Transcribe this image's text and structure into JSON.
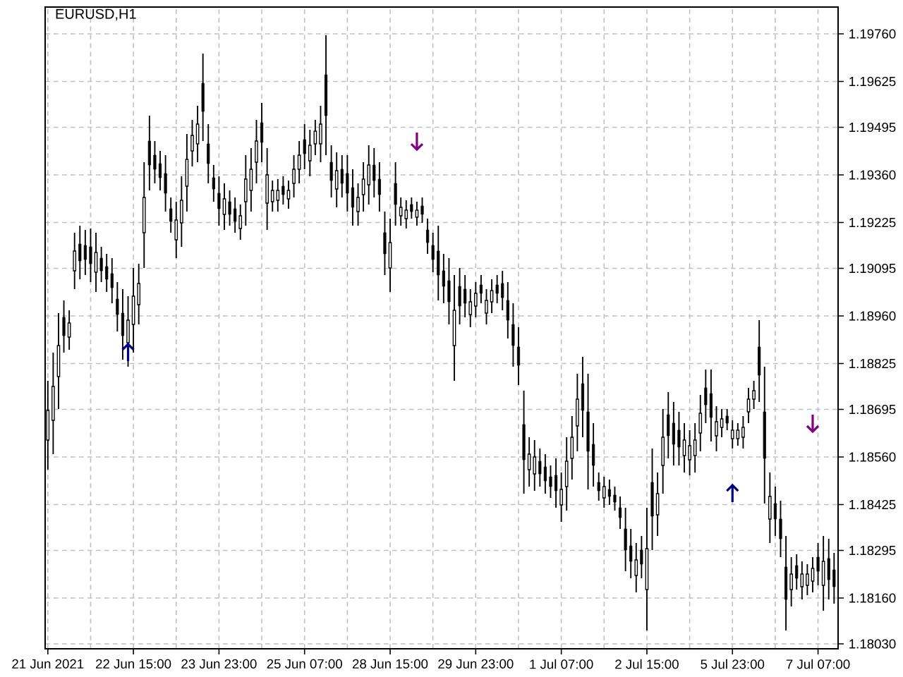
{
  "chart_data": {
    "type": "candlestick",
    "title": "EURUSD,H1",
    "color": "#000000",
    "categories": [
      "21 Jun 2021",
      null,
      null,
      null,
      null,
      null,
      null,
      null,
      null,
      null,
      null,
      null,
      null,
      null,
      null,
      null,
      "22 Jun 15:00",
      null,
      null,
      null,
      null,
      null,
      null,
      null,
      null,
      null,
      null,
      null,
      null,
      null,
      null,
      null,
      "23 Jun 23:00",
      null,
      null,
      null,
      null,
      null,
      null,
      null,
      null,
      null,
      null,
      null,
      null,
      null,
      null,
      null,
      "25 Jun 07:00",
      null,
      null,
      null,
      null,
      null,
      null,
      null,
      null,
      null,
      null,
      null,
      null,
      null,
      null,
      null,
      "28 Jun 15:00",
      null,
      null,
      null,
      null,
      null,
      null,
      null,
      null,
      null,
      null,
      null,
      null,
      null,
      null,
      null,
      "29 Jun 23:00",
      null,
      null,
      null,
      null,
      null,
      null,
      null,
      null,
      null,
      null,
      null,
      null,
      null,
      null,
      null,
      "1 Jul 07:00",
      null,
      null,
      null,
      null,
      null,
      null,
      null,
      null,
      null,
      null,
      null,
      null,
      null,
      null,
      null,
      "2 Jul 15:00",
      null,
      null,
      null,
      null,
      null,
      null,
      null,
      null,
      null,
      null,
      null,
      null,
      null,
      null,
      null,
      "5 Jul 23:00",
      null,
      null,
      null,
      null,
      null,
      null,
      null,
      null,
      null,
      null,
      null,
      null,
      null,
      null,
      null,
      "7 Jul 07:00",
      null,
      null,
      null
    ],
    "ohlc": [
      [
        1.18608,
        1.18776,
        1.18524,
        1.18692
      ],
      [
        1.18664,
        1.18856,
        1.18568,
        1.1876
      ],
      [
        1.18788,
        1.18968,
        1.18696,
        1.18876
      ],
      [
        1.18956,
        1.19004,
        1.18856,
        1.18904
      ],
      [
        1.189,
        1.18976,
        1.18864,
        1.1894
      ],
      [
        1.19088,
        1.19196,
        1.19036,
        1.19144
      ],
      [
        1.19164,
        1.19216,
        1.19064,
        1.19116
      ],
      [
        1.1916,
        1.19204,
        1.19076,
        1.1912
      ],
      [
        1.19156,
        1.19208,
        1.19056,
        1.19108
      ],
      [
        1.19084,
        1.19196,
        1.19028,
        1.1914
      ],
      [
        1.19124,
        1.19156,
        1.19056,
        1.19088
      ],
      [
        1.191,
        1.19136,
        1.19028,
        1.19064
      ],
      [
        1.1908,
        1.19124,
        1.18996,
        1.1904
      ],
      [
        1.19008,
        1.19056,
        1.18916,
        1.18964
      ],
      [
        1.18968,
        1.19036,
        1.18836,
        1.18904
      ],
      [
        1.18884,
        1.19016,
        1.18816,
        1.18948
      ],
      [
        1.18936,
        1.19096,
        1.18856,
        1.19016
      ],
      [
        1.18992,
        1.19108,
        1.18936,
        1.19052
      ],
      [
        1.19196,
        1.19396,
        1.19096,
        1.19296
      ],
      [
        1.19456,
        1.19528,
        1.19316,
        1.19388
      ],
      [
        1.19416,
        1.19456,
        1.19336,
        1.19376
      ],
      [
        1.19392,
        1.19428,
        1.19316,
        1.19352
      ],
      [
        1.19364,
        1.19416,
        1.19256,
        1.19308
      ],
      [
        1.19264,
        1.19296,
        1.19196,
        1.19228
      ],
      [
        1.19176,
        1.19284,
        1.19124,
        1.19232
      ],
      [
        1.19224,
        1.19356,
        1.19156,
        1.19288
      ],
      [
        1.19328,
        1.19476,
        1.19256,
        1.19404
      ],
      [
        1.19428,
        1.19516,
        1.19384,
        1.19472
      ],
      [
        1.19448,
        1.19556,
        1.19396,
        1.19504
      ],
      [
        1.1962,
        1.19704,
        1.19456,
        1.1954
      ],
      [
        1.19448,
        1.19504,
        1.19336,
        1.19392
      ],
      [
        1.19352,
        1.19388,
        1.19284,
        1.1932
      ],
      [
        1.19308,
        1.19356,
        1.19216,
        1.19264
      ],
      [
        1.19248,
        1.19336,
        1.19204,
        1.19292
      ],
      [
        1.19284,
        1.19316,
        1.19216,
        1.19248
      ],
      [
        1.19264,
        1.19296,
        1.19196,
        1.19228
      ],
      [
        1.19208,
        1.19276,
        1.19176,
        1.19244
      ],
      [
        1.19284,
        1.19416,
        1.19216,
        1.19348
      ],
      [
        1.19316,
        1.19436,
        1.19256,
        1.19376
      ],
      [
        1.19396,
        1.19516,
        1.19336,
        1.19456
      ],
      [
        1.19508,
        1.19564,
        1.19396,
        1.19452
      ],
      [
        1.1928,
        1.19436,
        1.19204,
        1.1936
      ],
      [
        1.19284,
        1.19344,
        1.19256,
        1.19316
      ],
      [
        1.19288,
        1.19348,
        1.19256,
        1.19316
      ],
      [
        1.19328,
        1.19356,
        1.19276,
        1.19304
      ],
      [
        1.19292,
        1.19344,
        1.19264,
        1.19316
      ],
      [
        1.19336,
        1.19416,
        1.19296,
        1.19376
      ],
      [
        1.19376,
        1.19456,
        1.19336,
        1.19416
      ],
      [
        1.1946,
        1.19504,
        1.19376,
        1.1942
      ],
      [
        1.194,
        1.19488,
        1.19356,
        1.19444
      ],
      [
        1.19448,
        1.19516,
        1.19416,
        1.19484
      ],
      [
        1.19448,
        1.19556,
        1.19396,
        1.19504
      ],
      [
        1.19644,
        1.19756,
        1.19416,
        1.19528
      ],
      [
        1.19396,
        1.19444,
        1.19296,
        1.19344
      ],
      [
        1.1932,
        1.19424,
        1.19268,
        1.19372
      ],
      [
        1.19376,
        1.19416,
        1.19296,
        1.19336
      ],
      [
        1.19364,
        1.19416,
        1.19256,
        1.19308
      ],
      [
        1.19324,
        1.19376,
        1.19216,
        1.19268
      ],
      [
        1.19256,
        1.19336,
        1.19216,
        1.19296
      ],
      [
        1.19304,
        1.19396,
        1.19256,
        1.19348
      ],
      [
        1.19332,
        1.19444,
        1.19276,
        1.19388
      ],
      [
        1.19388,
        1.19436,
        1.19296,
        1.19344
      ],
      [
        1.19348,
        1.19396,
        1.19256,
        1.19304
      ],
      [
        1.19196,
        1.19256,
        1.19076,
        1.19136
      ],
      [
        1.19096,
        1.19236,
        1.19028,
        1.19168
      ],
      [
        1.19336,
        1.19396,
        1.19216,
        1.19276
      ],
      [
        1.19244,
        1.19296,
        1.19216,
        1.19268
      ],
      [
        1.19236,
        1.19288,
        1.19208,
        1.1926
      ],
      [
        1.19276,
        1.19296,
        1.19236,
        1.19256
      ],
      [
        1.1924,
        1.19284,
        1.19216,
        1.1926
      ],
      [
        1.19272,
        1.19296,
        1.19224,
        1.19248
      ],
      [
        1.19204,
        1.19236,
        1.19136,
        1.19168
      ],
      [
        1.1916,
        1.19196,
        1.19084,
        1.1912
      ],
      [
        1.19144,
        1.19216,
        1.19004,
        1.19076
      ],
      [
        1.19088,
        1.19136,
        1.18996,
        1.19044
      ],
      [
        1.1906,
        1.19124,
        1.18936,
        1.19
      ],
      [
        1.18876,
        1.19076,
        1.18776,
        1.18976
      ],
      [
        1.19044,
        1.19096,
        1.18936,
        1.18988
      ],
      [
        1.19036,
        1.19076,
        1.18956,
        1.18996
      ],
      [
        1.18964,
        1.19036,
        1.18928,
        1.19
      ],
      [
        1.18988,
        1.19056,
        1.18956,
        1.19024
      ],
      [
        1.19048,
        1.19076,
        1.18996,
        1.19024
      ],
      [
        1.18968,
        1.19036,
        1.18936,
        1.19004
      ],
      [
        1.19,
        1.19064,
        1.18968,
        1.19032
      ],
      [
        1.19048,
        1.19076,
        1.18996,
        1.19024
      ],
      [
        1.19052,
        1.19088,
        1.18976,
        1.19012
      ],
      [
        1.19004,
        1.19056,
        1.18896,
        1.18948
      ],
      [
        1.18936,
        1.18996,
        1.18816,
        1.18876
      ],
      [
        1.18872,
        1.18928,
        1.18764,
        1.1882
      ],
      [
        1.18652,
        1.18748,
        1.18456,
        1.18552
      ],
      [
        1.18524,
        1.18616,
        1.18476,
        1.18568
      ],
      [
        1.18512,
        1.18608,
        1.18464,
        1.1856
      ],
      [
        1.18548,
        1.18584,
        1.18476,
        1.18512
      ],
      [
        1.18532,
        1.18568,
        1.18456,
        1.18492
      ],
      [
        1.18504,
        1.18536,
        1.18444,
        1.18476
      ],
      [
        1.18508,
        1.18556,
        1.18416,
        1.18464
      ],
      [
        1.18424,
        1.18516,
        1.18376,
        1.18468
      ],
      [
        1.18476,
        1.18616,
        1.18408,
        1.18548
      ],
      [
        1.18556,
        1.18676,
        1.18496,
        1.18616
      ],
      [
        1.18648,
        1.18796,
        1.18576,
        1.18724
      ],
      [
        1.18768,
        1.18844,
        1.18616,
        1.18692
      ],
      [
        1.18688,
        1.18796,
        1.18468,
        1.18576
      ],
      [
        1.18596,
        1.18656,
        1.18476,
        1.18536
      ],
      [
        1.18488,
        1.18516,
        1.18436,
        1.18464
      ],
      [
        1.18444,
        1.18504,
        1.18416,
        1.18476
      ],
      [
        1.18468,
        1.18496,
        1.18424,
        1.18448
      ],
      [
        1.18452,
        1.18476,
        1.18408,
        1.18432
      ],
      [
        1.18416,
        1.18448,
        1.18356,
        1.18388
      ],
      [
        1.18356,
        1.18416,
        1.18236,
        1.18296
      ],
      [
        1.18308,
        1.18356,
        1.18216,
        1.18264
      ],
      [
        1.18224,
        1.18316,
        1.18176,
        1.18268
      ],
      [
        1.18296,
        1.18336,
        1.18216,
        1.18256
      ],
      [
        1.18184,
        1.18416,
        1.18068,
        1.183
      ],
      [
        1.18488,
        1.18584,
        1.18296,
        1.18392
      ],
      [
        1.18396,
        1.18516,
        1.18336,
        1.18456
      ],
      [
        1.18536,
        1.18696,
        1.18456,
        1.18616
      ],
      [
        1.1868,
        1.18744,
        1.18556,
        1.1862
      ],
      [
        1.18656,
        1.18716,
        1.18536,
        1.18596
      ],
      [
        1.18636,
        1.18688,
        1.18536,
        1.18588
      ],
      [
        1.18564,
        1.18656,
        1.18516,
        1.18608
      ],
      [
        1.18552,
        1.18636,
        1.18508,
        1.18592
      ],
      [
        1.18564,
        1.18656,
        1.18516,
        1.18608
      ],
      [
        1.18628,
        1.18736,
        1.18576,
        1.18684
      ],
      [
        1.18756,
        1.18808,
        1.18656,
        1.18708
      ],
      [
        1.1874,
        1.18808,
        1.18604,
        1.18672
      ],
      [
        1.1862,
        1.18704,
        1.18576,
        1.1866
      ],
      [
        1.18644,
        1.18696,
        1.18616,
        1.18668
      ],
      [
        1.18676,
        1.18696,
        1.18636,
        1.18656
      ],
      [
        1.18612,
        1.18664,
        1.18584,
        1.18636
      ],
      [
        1.18612,
        1.18656,
        1.18592,
        1.18636
      ],
      [
        1.18616,
        1.18676,
        1.18584,
        1.18644
      ],
      [
        1.18688,
        1.18756,
        1.18656,
        1.18724
      ],
      [
        1.18724,
        1.18776,
        1.18696,
        1.18748
      ],
      [
        1.18872,
        1.18948,
        1.18716,
        1.18792
      ],
      [
        1.18688,
        1.18816,
        1.18428,
        1.18556
      ],
      [
        1.18384,
        1.18516,
        1.18316,
        1.18448
      ],
      [
        1.18428,
        1.18476,
        1.18336,
        1.18384
      ],
      [
        1.18384,
        1.18436,
        1.18276,
        1.18328
      ],
      [
        1.18248,
        1.18336,
        1.18068,
        1.18156
      ],
      [
        1.18184,
        1.18276,
        1.18136,
        1.18228
      ],
      [
        1.18252,
        1.18284,
        1.18184,
        1.18216
      ],
      [
        1.18192,
        1.18264,
        1.18156,
        1.18228
      ],
      [
        1.18196,
        1.18256,
        1.18168,
        1.18228
      ],
      [
        1.18208,
        1.18276,
        1.18176,
        1.18244
      ],
      [
        1.18276,
        1.18316,
        1.18196,
        1.18236
      ],
      [
        1.18196,
        1.18336,
        1.18124,
        1.18264
      ],
      [
        1.18272,
        1.18328,
        1.18156,
        1.18212
      ],
      [
        1.1824,
        1.18288,
        1.18144,
        1.18192
      ]
    ],
    "series": [
      {
        "type": "scatter",
        "color": "#000080",
        "values": [
          null,
          null,
          null,
          null,
          null,
          null,
          null,
          null,
          null,
          null,
          null,
          null,
          null,
          null,
          null,
          1.18856,
          null,
          null,
          null,
          null,
          null,
          null,
          null,
          null,
          null,
          null,
          null,
          null,
          null,
          null,
          null,
          null,
          null,
          null,
          null,
          null,
          null,
          null,
          null,
          null,
          null,
          null,
          null,
          null,
          null,
          null,
          null,
          null,
          null,
          null,
          null,
          null,
          null,
          null,
          null,
          null,
          null,
          null,
          null,
          null,
          null,
          null,
          null,
          null,
          null,
          null,
          null,
          null,
          null,
          null,
          null,
          null,
          null,
          null,
          null,
          null,
          null,
          null,
          null,
          null,
          null,
          null,
          null,
          null,
          null,
          null,
          null,
          null,
          null,
          null,
          null,
          null,
          null,
          null,
          null,
          null,
          null,
          null,
          null,
          null,
          null,
          null,
          null,
          null,
          null,
          null,
          null,
          null,
          null,
          null,
          null,
          null,
          null,
          null,
          null,
          null,
          null,
          null,
          null,
          null,
          null,
          null,
          null,
          null,
          null,
          null,
          null,
          null,
          1.18456,
          null,
          null,
          null,
          null,
          null,
          null,
          null,
          null,
          null,
          null,
          null,
          null,
          null,
          null,
          null,
          null,
          null,
          null,
          null
        ]
      },
      {
        "type": "scatter",
        "color": "#800080",
        "values": [
          null,
          null,
          null,
          null,
          null,
          null,
          null,
          null,
          null,
          null,
          null,
          null,
          null,
          null,
          null,
          null,
          null,
          null,
          null,
          null,
          null,
          null,
          null,
          null,
          null,
          null,
          null,
          null,
          null,
          null,
          null,
          null,
          null,
          null,
          null,
          null,
          null,
          null,
          null,
          null,
          null,
          null,
          null,
          null,
          null,
          null,
          null,
          null,
          null,
          null,
          null,
          null,
          null,
          null,
          null,
          null,
          null,
          null,
          null,
          null,
          null,
          null,
          null,
          null,
          null,
          null,
          null,
          null,
          null,
          1.19456,
          null,
          null,
          null,
          null,
          null,
          null,
          null,
          null,
          null,
          null,
          null,
          null,
          null,
          null,
          null,
          null,
          null,
          null,
          null,
          null,
          null,
          null,
          null,
          null,
          null,
          null,
          null,
          null,
          null,
          null,
          null,
          null,
          null,
          null,
          null,
          null,
          null,
          null,
          null,
          null,
          null,
          null,
          null,
          null,
          null,
          null,
          null,
          null,
          null,
          null,
          null,
          null,
          null,
          null,
          null,
          null,
          null,
          null,
          null,
          null,
          null,
          null,
          null,
          null,
          null,
          null,
          null,
          null,
          null,
          null,
          null,
          null,
          null,
          1.18656,
          null,
          null,
          null,
          null
        ]
      }
    ],
    "ylim": [
      1.18016,
      1.19836
    ],
    "yticks": [
      {
        "value": 1.1976,
        "label": "1.19760"
      },
      {
        "value": 1.19625,
        "label": "1.19625"
      },
      {
        "value": 1.19495,
        "label": "1.19495"
      },
      {
        "value": 1.1936,
        "label": "1.19360"
      },
      {
        "value": 1.19225,
        "label": "1.19225"
      },
      {
        "value": 1.19095,
        "label": "1.19095"
      },
      {
        "value": 1.1896,
        "label": "1.18960"
      },
      {
        "value": 1.18825,
        "label": "1.18825"
      },
      {
        "value": 1.18695,
        "label": "1.18695"
      },
      {
        "value": 1.1856,
        "label": "1.18560"
      },
      {
        "value": 1.18425,
        "label": "1.18425"
      },
      {
        "value": 1.18295,
        "label": "1.18295"
      },
      {
        "value": 1.1816,
        "label": "1.18160"
      },
      {
        "value": 1.1803,
        "label": "1.18030"
      }
    ],
    "grid": true
  }
}
